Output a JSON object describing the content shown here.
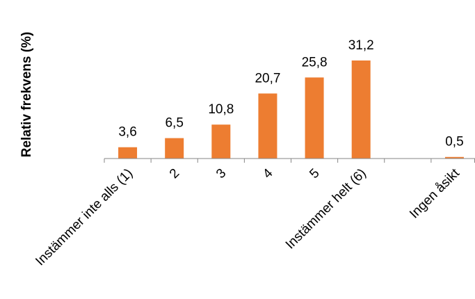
{
  "chart_data": {
    "type": "bar",
    "ylabel": "Relativ frekvens (%)",
    "categories": [
      "Instämmer inte alls (1)",
      "2",
      "3",
      "4",
      "5",
      "Instämmer helt (6)",
      "",
      "Ingen åsikt"
    ],
    "values": [
      3.6,
      6.5,
      10.8,
      20.7,
      25.8,
      31.2,
      null,
      0.5
    ],
    "data_labels": [
      "3,6",
      "6,5",
      "10,8",
      "20,7",
      "25,8",
      "31,2",
      "",
      "0,5"
    ],
    "ylim": [
      0,
      31.2
    ],
    "grid": false,
    "legend": "none",
    "bar_color": "#ED7D31",
    "axis_color": "#868686"
  }
}
